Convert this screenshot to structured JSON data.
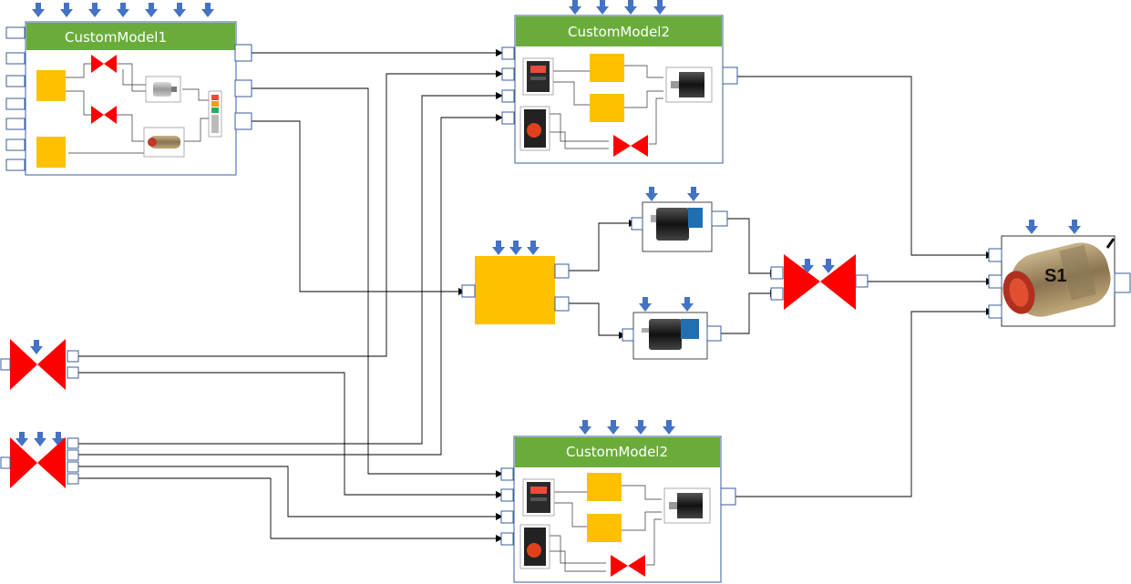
{
  "blocks": {
    "custom_model_1": {
      "title": "CustomModel1"
    },
    "custom_model_2_top": {
      "title": "CustomModel2"
    },
    "custom_model_2_bottom": {
      "title": "CustomModel2"
    },
    "sensor_block": {
      "label": "S1"
    }
  },
  "colors": {
    "title_bar": "#6aac3a",
    "block_border": "#3b5d9c",
    "valve": "#ff0000",
    "processor": "#ffc000",
    "input_arrow": "#4472c4",
    "wire": "#000000"
  },
  "icons": [
    "down-arrow-icon",
    "valve-icon",
    "processor-block",
    "motor-icon",
    "sensor-icon",
    "controller-icon",
    "stack-light-icon"
  ]
}
